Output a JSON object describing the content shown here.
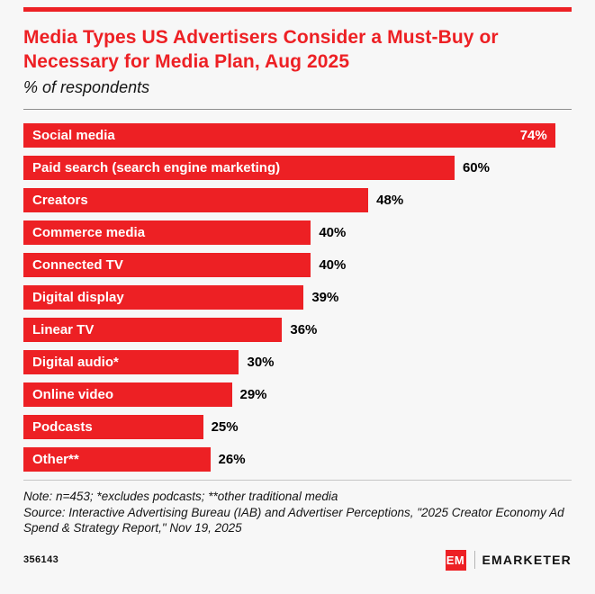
{
  "colors": {
    "accent": "#ed2024",
    "background": "#f7f7f7"
  },
  "header": {
    "title": "Media Types US Advertisers Consider a Must-Buy or Necessary for Media Plan, Aug 2025",
    "subtitle": "% of respondents"
  },
  "chart_data": {
    "type": "bar",
    "orientation": "horizontal",
    "title": "Media Types US Advertisers Consider a Must-Buy or Necessary for Media Plan, Aug 2025",
    "subtitle": "% of respondents",
    "categories": [
      "Social media",
      "Paid search (search engine marketing)",
      "Creators",
      "Commerce media",
      "Connected TV",
      "Digital display",
      "Linear TV",
      "Digital audio*",
      "Online video",
      "Podcasts",
      "Other**"
    ],
    "values": [
      74,
      60,
      48,
      40,
      40,
      39,
      36,
      30,
      29,
      25,
      26
    ],
    "value_suffix": "%",
    "xlim": [
      0,
      77
    ],
    "bar_color": "#ed2024",
    "grid": false,
    "legend": "none"
  },
  "footer": {
    "note": "Note: n=453; *excludes podcasts; **other traditional media",
    "source": "Source: Interactive Advertising Bureau (IAB) and Advertiser Perceptions, \"2025 Creator Economy Ad Spend & Strategy Report,\" Nov 19, 2025",
    "chart_id": "356143",
    "logo_em": "EM",
    "logo_text": "EMARKETER"
  }
}
